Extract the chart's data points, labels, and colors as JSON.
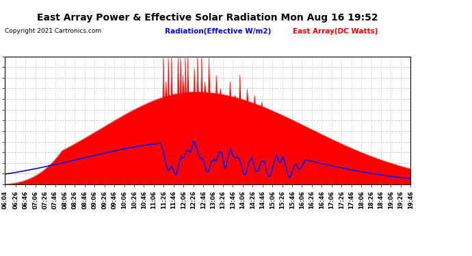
{
  "title": "East Array Power & Effective Solar Radiation Mon Aug 16 19:52",
  "copyright": "Copyright 2021 Cartronics.com",
  "legend_radiation": "Radiation(Effective W/m2)",
  "legend_east": "East Array(DC Watts)",
  "ymin": -4.3,
  "ymax": 1868.6,
  "yticks": [
    -4.3,
    151.8,
    307.9,
    463.9,
    620.0,
    776.1,
    932.1,
    1088.2,
    1244.3,
    1400.3,
    1556.4,
    1712.5,
    1868.6
  ],
  "background_color": "#ffffff",
  "plot_bg_color": "#ffffff",
  "grid_color": "#c8c8c8",
  "red_color": "#ff0000",
  "blue_color": "#0000ff",
  "title_color": "#000000",
  "copyright_color": "#000000",
  "xtick_labels": [
    "06:04",
    "06:26",
    "06:46",
    "07:06",
    "07:26",
    "07:46",
    "08:06",
    "08:26",
    "08:46",
    "09:06",
    "09:26",
    "09:46",
    "10:06",
    "10:26",
    "10:46",
    "11:06",
    "11:26",
    "11:46",
    "12:06",
    "12:26",
    "12:46",
    "13:06",
    "13:26",
    "13:46",
    "14:06",
    "14:26",
    "14:46",
    "15:06",
    "15:26",
    "15:46",
    "16:06",
    "16:26",
    "16:46",
    "17:06",
    "17:26",
    "17:46",
    "18:06",
    "18:26",
    "18:46",
    "19:06",
    "19:26",
    "19:46"
  ]
}
